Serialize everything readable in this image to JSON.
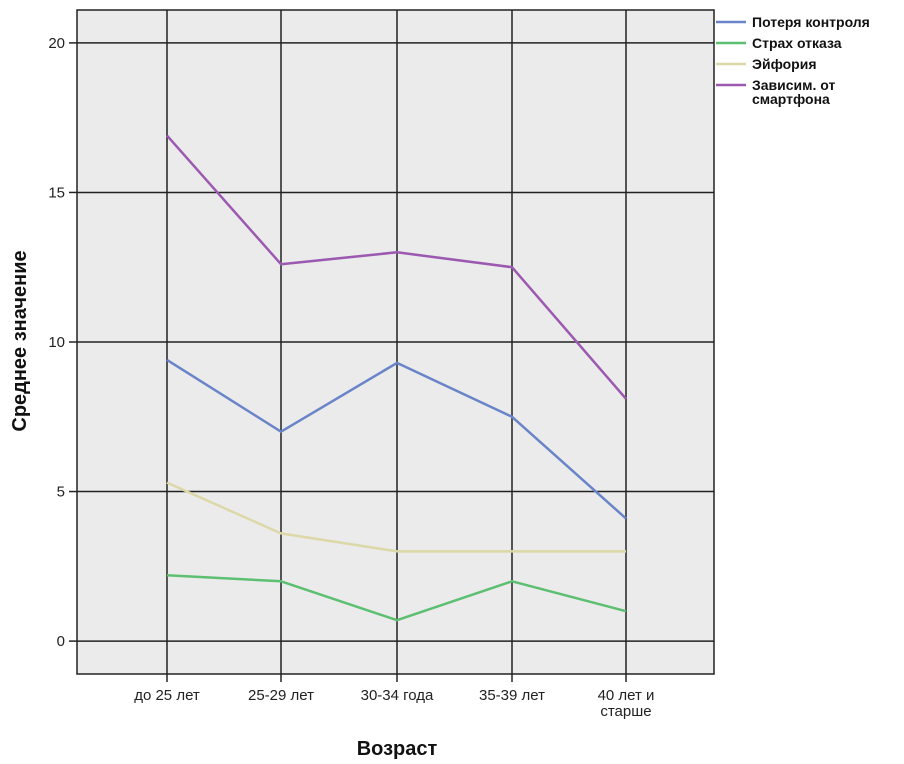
{
  "chart_data": {
    "type": "line",
    "xlabel": "Возраст",
    "ylabel": "Среднее значение",
    "categories": [
      [
        "до 25 лет"
      ],
      [
        "25-29 лет"
      ],
      [
        "30-34 года"
      ],
      [
        "35-39 лет"
      ],
      [
        "40 лет и",
        "старше"
      ]
    ],
    "ylim": [
      -1.1,
      21.1
    ],
    "yticks": [
      0,
      5,
      10,
      15,
      20
    ],
    "grid": true,
    "legend_position": "top-right",
    "background": "#ebebeb",
    "series": [
      {
        "name": [
          "Потеря контроля"
        ],
        "color": "#6a84c9",
        "values": [
          9.4,
          7.0,
          9.3,
          7.5,
          4.1
        ]
      },
      {
        "name": [
          "Страх отказа"
        ],
        "color": "#5dbf72",
        "values": [
          2.2,
          2.0,
          0.7,
          2.0,
          1.0
        ]
      },
      {
        "name": [
          "Эйфория"
        ],
        "color": "#dcd8a8",
        "values": [
          5.3,
          3.6,
          3.0,
          3.0,
          3.0
        ]
      },
      {
        "name": [
          "Зависим. от",
          "смартфона"
        ],
        "color": "#9b59b0",
        "values": [
          16.9,
          12.6,
          13.0,
          12.5,
          8.1
        ]
      }
    ]
  }
}
